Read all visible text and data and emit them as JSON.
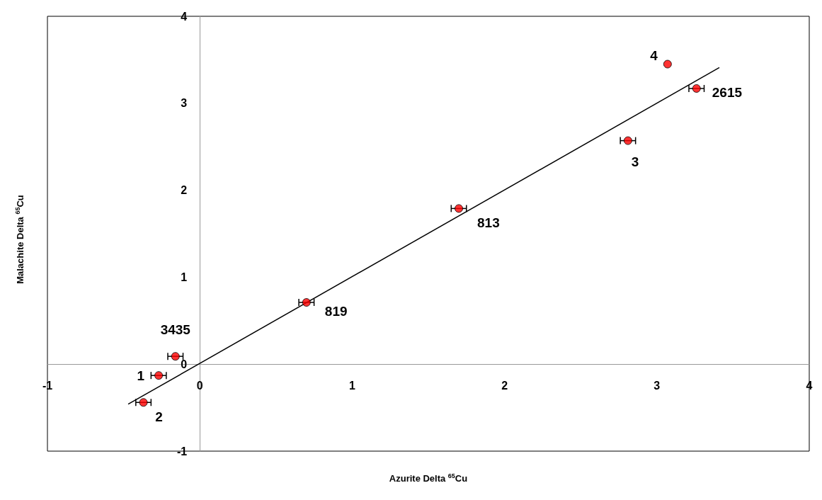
{
  "chart_data": {
    "type": "scatter",
    "xlabel": "Azurite Delta $^{65}$Cu",
    "ylabel": "Malachite Delta $^{65}$Cu",
    "xlim": [
      -1,
      4
    ],
    "ylim": [
      -1,
      4
    ],
    "xticks": [
      -1,
      0,
      1,
      2,
      3,
      4
    ],
    "yticks": [
      -1,
      0,
      1,
      2,
      3,
      4
    ],
    "grid": false,
    "marker": "circle",
    "series": [
      {
        "type": "scatter",
        "color": "#ff0000",
        "x": [
          -0.16,
          -0.27,
          -0.37,
          0.7,
          1.7,
          2.81,
          3.07,
          3.26
        ],
        "values": [
          0.09,
          -0.13,
          -0.44,
          0.71,
          1.79,
          2.57,
          3.45,
          3.17
        ],
        "xerrors": [
          0.05,
          0.05,
          0.05,
          0.05,
          0.05,
          0.05,
          null,
          0.05
        ]
      },
      {
        "type": "line",
        "color": "#000000",
        "x": [
          -0.47,
          3.41
        ],
        "values": [
          -0.46,
          3.41
        ],
        "marker": "none"
      }
    ],
    "annotations": [
      {
        "text": "3435",
        "x": -0.16,
        "y": 0.09
      },
      {
        "text": "1",
        "x": -0.27,
        "y": -0.13
      },
      {
        "text": "2",
        "x": -0.37,
        "y": -0.44
      },
      {
        "text": "819",
        "x": 0.7,
        "y": 0.71
      },
      {
        "text": "813",
        "x": 1.7,
        "y": 1.79
      },
      {
        "text": "3",
        "x": 2.81,
        "y": 2.57
      },
      {
        "text": "4",
        "x": 3.07,
        "y": 3.45
      },
      {
        "text": "2615",
        "x": 3.26,
        "y": 3.17
      }
    ]
  }
}
